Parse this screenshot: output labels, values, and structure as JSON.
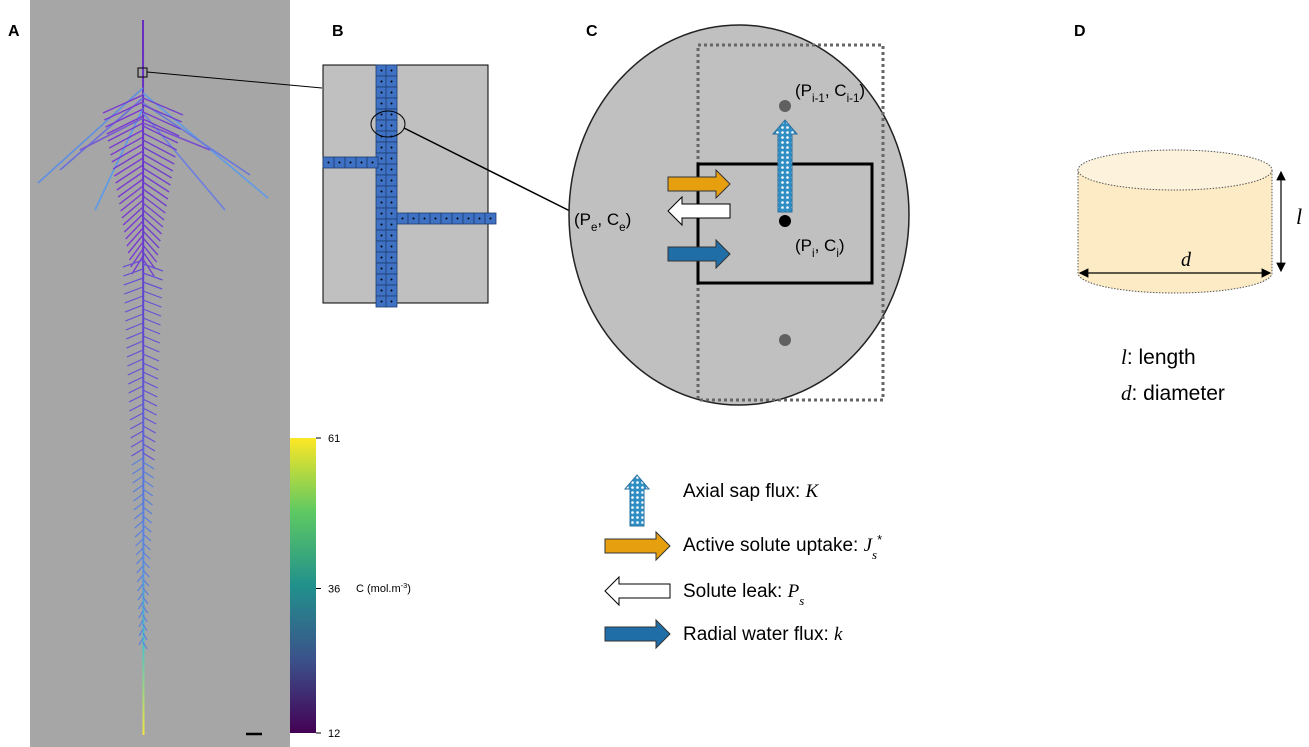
{
  "panels": {
    "a": "A",
    "b": "B",
    "c": "C",
    "d": "D"
  },
  "colorbar": {
    "ticks": [
      61,
      36,
      12
    ],
    "label": [
      {
        "text": "C (mol.m"
      },
      {
        "sup": "-3"
      },
      {
        "text": ")"
      }
    ]
  },
  "panel_c": {
    "labels": [
      [
        {
          "text": "(P"
        },
        {
          "sub": "i-1"
        },
        {
          "text": ", C"
        },
        {
          "sub": "i-1"
        },
        {
          "text": ")"
        }
      ],
      [
        {
          "text": "(P"
        },
        {
          "sub": "e"
        },
        {
          "text": ", C"
        },
        {
          "sub": "e"
        },
        {
          "text": ")"
        }
      ],
      [
        {
          "text": "(P"
        },
        {
          "sub": "i"
        },
        {
          "text": ", C"
        },
        {
          "sub": "i"
        },
        {
          "text": ")"
        }
      ]
    ]
  },
  "legend": [
    [
      {
        "text": "Axial sap flux: "
      },
      {
        "it": "K"
      }
    ],
    [
      {
        "text": "Active solute uptake: "
      },
      {
        "it": "J"
      },
      {
        "itsub": "s"
      },
      {
        "sup": "*"
      }
    ],
    [
      {
        "text": "Solute leak: "
      },
      {
        "it": "P"
      },
      {
        "itsub": "s"
      }
    ],
    [
      {
        "text": "Radial water flux: "
      },
      {
        "it": "k"
      }
    ]
  ],
  "panel_d": {
    "length_symbol": "l",
    "diameter_symbol": "d",
    "notes": [
      [
        {
          "it": "l"
        },
        {
          "text": ": length"
        }
      ],
      [
        {
          "it": "d"
        },
        {
          "text": ": diameter"
        }
      ]
    ]
  }
}
